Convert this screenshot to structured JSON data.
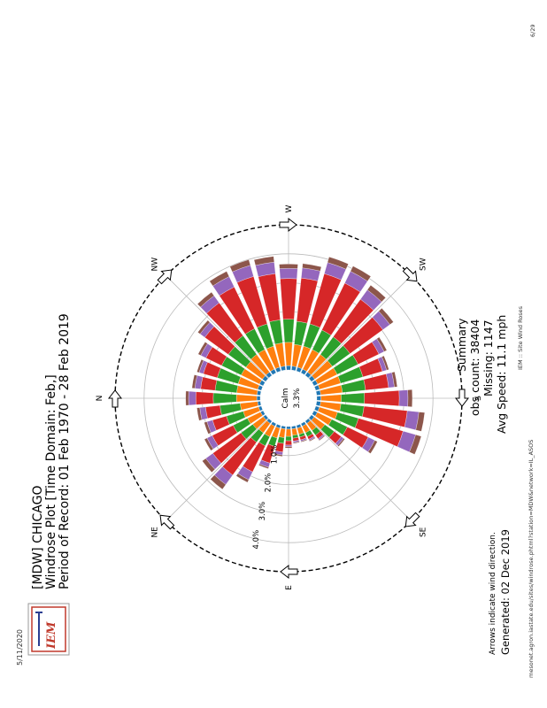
{
  "page": {
    "printed_date": "5/11/2020",
    "page_header": "IEM :: Site Wind Roses",
    "page_number": "6/29",
    "footer_url": "mesonet.agron.iastate.edu/sites/windrose.phtml?station=MDW&network=IL_ASOS"
  },
  "logo": {
    "text": "IEM"
  },
  "chart_data": {
    "type": "windrose",
    "title_lines": [
      "[MDW] CHICAGO",
      "Windrose Plot [Time Domain: Feb,]",
      "Period of Record: 01 Feb 1970 - 28 Feb 2019"
    ],
    "calm_label": "Calm",
    "calm_value": "3.3%",
    "directions": [
      "N",
      "NE",
      "E",
      "SE",
      "S",
      "SW",
      "W",
      "NW"
    ],
    "ring_labels": [
      "1.0%",
      "2.0%",
      "3.0%",
      "4.0%"
    ],
    "ring_values": [
      1.0,
      2.0,
      3.0,
      4.0
    ],
    "rlim": [
      0,
      5.0
    ],
    "sector_directions_deg": [
      0,
      10,
      20,
      30,
      40,
      50,
      60,
      70,
      80,
      90,
      100,
      110,
      120,
      130,
      140,
      150,
      160,
      170,
      180,
      190,
      200,
      210,
      220,
      230,
      240,
      250,
      260,
      270,
      280,
      290,
      300,
      310,
      320,
      330,
      340,
      350
    ],
    "series_colors": [
      "#1f77b4",
      "#ff7f0e",
      "#2ca02c",
      "#d62728",
      "#9467bd",
      "#8c564b"
    ],
    "series": [
      {
        "values": [
          0.12,
          0.1,
          0.1,
          0.1,
          0.1,
          0.1,
          0.1,
          0.1,
          0.09,
          0.09,
          0.09,
          0.1,
          0.1,
          0.1,
          0.12,
          0.13,
          0.13,
          0.14,
          0.14,
          0.14,
          0.14,
          0.14,
          0.14,
          0.14,
          0.14,
          0.14,
          0.14,
          0.15,
          0.14,
          0.14,
          0.14,
          0.14,
          0.14,
          0.14,
          0.13,
          0.12
        ]
      },
      {
        "values": [
          0.7,
          0.6,
          0.55,
          0.5,
          0.45,
          0.4,
          0.4,
          0.35,
          0.3,
          0.25,
          0.22,
          0.22,
          0.25,
          0.3,
          0.45,
          0.55,
          0.65,
          0.7,
          0.7,
          0.75,
          0.75,
          0.75,
          0.75,
          0.75,
          0.75,
          0.75,
          0.75,
          0.8,
          0.8,
          0.75,
          0.75,
          0.75,
          0.7,
          0.7,
          0.7,
          0.7
        ]
      },
      {
        "values": [
          0.8,
          0.7,
          0.6,
          0.55,
          0.5,
          0.4,
          0.35,
          0.3,
          0.2,
          0.15,
          0.1,
          0.1,
          0.15,
          0.2,
          0.4,
          0.6,
          0.75,
          0.8,
          0.8,
          0.8,
          0.8,
          0.8,
          0.75,
          0.75,
          0.75,
          0.8,
          0.8,
          0.8,
          0.8,
          0.8,
          0.8,
          0.8,
          0.75,
          0.75,
          0.75,
          0.75
        ]
      },
      {
        "values": [
          0.6,
          0.5,
          0.5,
          0.8,
          1.2,
          1.4,
          1.0,
          0.6,
          0.3,
          0.15,
          0.1,
          0.1,
          0.1,
          0.15,
          0.3,
          0.8,
          1.6,
          1.5,
          1.2,
          0.8,
          0.7,
          0.8,
          1.4,
          1.6,
          1.8,
          1.8,
          1.5,
          1.4,
          1.6,
          1.7,
          1.6,
          1.4,
          1.0,
          0.6,
          0.5,
          0.5
        ]
      },
      {
        "values": [
          0.25,
          0.2,
          0.2,
          0.2,
          0.3,
          0.4,
          0.3,
          0.15,
          0.1,
          0.05,
          0.05,
          0.05,
          0.05,
          0.05,
          0.1,
          0.25,
          0.45,
          0.4,
          0.3,
          0.2,
          0.15,
          0.2,
          0.3,
          0.4,
          0.45,
          0.4,
          0.35,
          0.35,
          0.4,
          0.4,
          0.4,
          0.3,
          0.2,
          0.2,
          0.15,
          0.2
        ]
      },
      {
        "values": [
          0.1,
          0.1,
          0.1,
          0.1,
          0.15,
          0.2,
          0.1,
          0.05,
          0.05,
          0.05,
          0.03,
          0.03,
          0.03,
          0.03,
          0.05,
          0.1,
          0.2,
          0.2,
          0.15,
          0.1,
          0.08,
          0.1,
          0.15,
          0.2,
          0.2,
          0.2,
          0.15,
          0.15,
          0.2,
          0.2,
          0.2,
          0.15,
          0.1,
          0.1,
          0.08,
          0.1
        ]
      }
    ],
    "summary": {
      "heading": "Summary",
      "obs_count": "obs count: 38404",
      "missing": "Missing: 1147",
      "avg_speed": "Avg Speed: 11.1 mph"
    },
    "notes": {
      "arrows": "Arrows indicate wind direction.",
      "generated": "Generated: 02 Dec 2019"
    }
  }
}
